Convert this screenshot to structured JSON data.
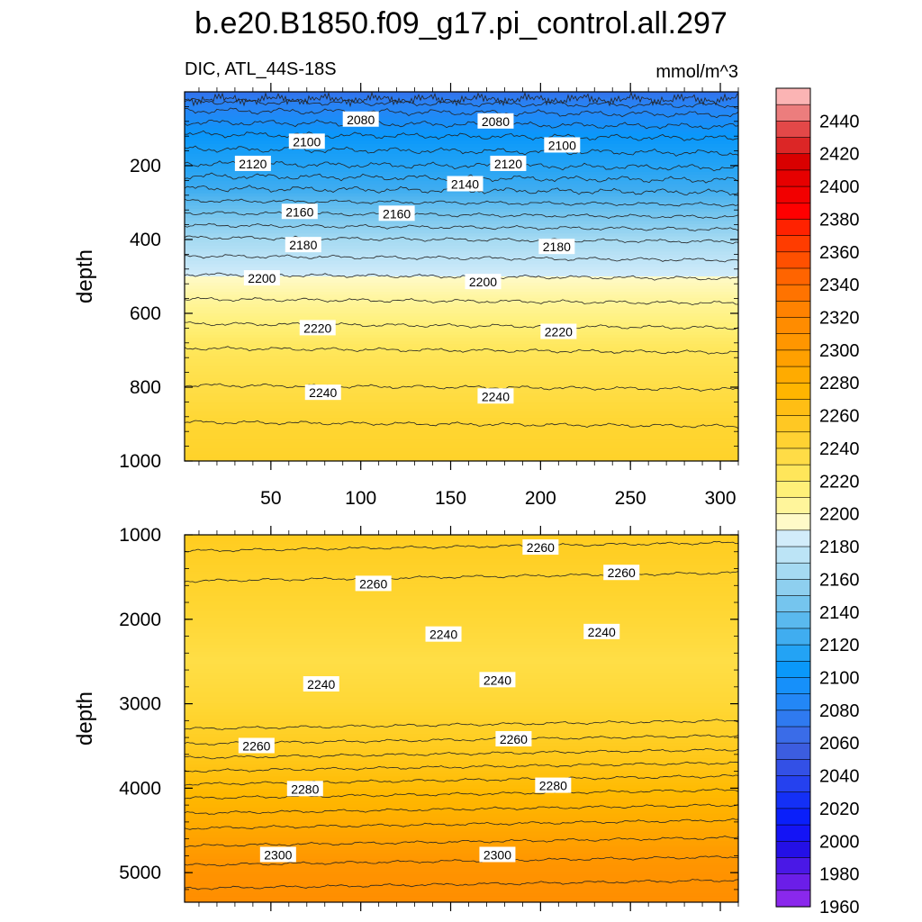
{
  "title": "b.e20.B1850.f09_g17.pi_control.all.297",
  "subtitle_left": "DIC, ATL_44S-18S",
  "subtitle_right": "mmol/m^3",
  "chart_data": [
    {
      "type": "heatmap",
      "panel": "upper",
      "variable": "DIC",
      "units": "mmol/m^3",
      "xlabel": "",
      "ylabel": "depth",
      "x_ticks": [
        50,
        100,
        150,
        200,
        250,
        300
      ],
      "x_tick_labels": [
        "50",
        "100",
        "150",
        "200",
        "250",
        "300"
      ],
      "xlim": [
        2,
        310
      ],
      "ylim": [
        1000,
        0
      ],
      "y_ticks": [
        200,
        400,
        600,
        800,
        1000
      ],
      "y_tick_labels": [
        "200",
        "400",
        "600",
        "800",
        "1000"
      ],
      "contour_interval": 10,
      "contour_levels": [
        2070,
        2080,
        2090,
        2100,
        2110,
        2120,
        2130,
        2140,
        2150,
        2160,
        2170,
        2180,
        2190,
        2200,
        2210,
        2220,
        2230,
        2240,
        2250
      ],
      "depth_profile": [
        [
          5,
          2055
        ],
        [
          40,
          2075
        ],
        [
          120,
          2100
        ],
        [
          200,
          2120
        ],
        [
          300,
          2150
        ],
        [
          400,
          2180
        ],
        [
          500,
          2200
        ],
        [
          600,
          2215
        ],
        [
          700,
          2230
        ],
        [
          800,
          2240
        ],
        [
          900,
          2250
        ],
        [
          1000,
          2255
        ]
      ],
      "contour_labels": [
        {
          "text": "2080",
          "x": 100,
          "depth": 75
        },
        {
          "text": "2080",
          "x": 175,
          "depth": 80
        },
        {
          "text": "2100",
          "x": 70,
          "depth": 135
        },
        {
          "text": "2100",
          "x": 212,
          "depth": 145
        },
        {
          "text": "2120",
          "x": 40,
          "depth": 195
        },
        {
          "text": "2120",
          "x": 182,
          "depth": 195
        },
        {
          "text": "2140",
          "x": 158,
          "depth": 250
        },
        {
          "text": "2160",
          "x": 66,
          "depth": 325
        },
        {
          "text": "2160",
          "x": 120,
          "depth": 330
        },
        {
          "text": "2180",
          "x": 68,
          "depth": 415
        },
        {
          "text": "2180",
          "x": 209,
          "depth": 420
        },
        {
          "text": "2200",
          "x": 45,
          "depth": 505
        },
        {
          "text": "2200",
          "x": 168,
          "depth": 515
        },
        {
          "text": "2220",
          "x": 76,
          "depth": 640
        },
        {
          "text": "2220",
          "x": 210,
          "depth": 650
        },
        {
          "text": "2240",
          "x": 79,
          "depth": 815
        },
        {
          "text": "2240",
          "x": 175,
          "depth": 825
        }
      ]
    },
    {
      "type": "heatmap",
      "panel": "lower",
      "variable": "DIC",
      "units": "mmol/m^3",
      "xlabel": "",
      "ylabel": "depth",
      "xlim": [
        2,
        310
      ],
      "ylim": [
        5350,
        1000
      ],
      "y_ticks": [
        1000,
        2000,
        3000,
        4000,
        5000
      ],
      "y_tick_labels": [
        "1000",
        "2000",
        "3000",
        "4000",
        "5000"
      ],
      "contour_interval": 5,
      "contour_levels": [
        2255,
        2260,
        2265,
        2270,
        2275,
        2280,
        2285,
        2290,
        2295,
        2300,
        2305
      ],
      "depth_profile": [
        [
          1000,
          2262
        ],
        [
          1500,
          2255
        ],
        [
          2000,
          2248
        ],
        [
          2500,
          2240
        ],
        [
          3000,
          2248
        ],
        [
          3500,
          2262
        ],
        [
          4000,
          2278
        ],
        [
          4500,
          2292
        ],
        [
          5000,
          2303
        ],
        [
          5350,
          2308
        ]
      ],
      "contour_labels": [
        {
          "text": "2260",
          "x": 200,
          "depth": 1150
        },
        {
          "text": "2260",
          "x": 107,
          "depth": 1580
        },
        {
          "text": "2260",
          "x": 245,
          "depth": 1450
        },
        {
          "text": "2240",
          "x": 146,
          "depth": 2180
        },
        {
          "text": "2240",
          "x": 234,
          "depth": 2150
        },
        {
          "text": "2240",
          "x": 78,
          "depth": 2770
        },
        {
          "text": "2240",
          "x": 176,
          "depth": 2720
        },
        {
          "text": "2260",
          "x": 42,
          "depth": 3500
        },
        {
          "text": "2260",
          "x": 185,
          "depth": 3420
        },
        {
          "text": "2280",
          "x": 69,
          "depth": 4010
        },
        {
          "text": "2280",
          "x": 207,
          "depth": 3970
        },
        {
          "text": "2300",
          "x": 54,
          "depth": 4790
        },
        {
          "text": "2300",
          "x": 176,
          "depth": 4790
        }
      ]
    }
  ],
  "colorbar": {
    "orientation": "vertical",
    "labels": [
      "2440",
      "2420",
      "2400",
      "2380",
      "2360",
      "2340",
      "2320",
      "2300",
      "2280",
      "2260",
      "2240",
      "2220",
      "2200",
      "2180",
      "2160",
      "2140",
      "2120",
      "2100",
      "2080",
      "2060",
      "2040",
      "2020",
      "2000",
      "1980",
      "1960"
    ],
    "colors_top_to_bottom": [
      "#fbb4b4",
      "#ec7d7d",
      "#e34848",
      "#dc2626",
      "#d90000",
      "#e60000",
      "#f20000",
      "#ff0000",
      "#ff2200",
      "#ff3c00",
      "#ff5000",
      "#ff6400",
      "#ff7300",
      "#ff8200",
      "#ff8c00",
      "#ff9600",
      "#ffa000",
      "#ffab00",
      "#ffb500",
      "#ffbe14",
      "#ffc823",
      "#ffd232",
      "#ffdc46",
      "#ffe65a",
      "#fff078",
      "#fff59b",
      "#fffac8",
      "#d2ecfa",
      "#bce4f6",
      "#a5daf2",
      "#8ecfef",
      "#75c5ee",
      "#5ab9ee",
      "#40adf0",
      "#23a3f5",
      "#0a98fa",
      "#1690fa",
      "#2387f6",
      "#2f7af0",
      "#3a6ce8",
      "#3c5ddf",
      "#3350e6",
      "#2541ef",
      "#1430f6",
      "#0a1ffa",
      "#1414f5",
      "#2410e6",
      "#4a18e6",
      "#6b1ee8",
      "#8a28ec"
    ]
  }
}
